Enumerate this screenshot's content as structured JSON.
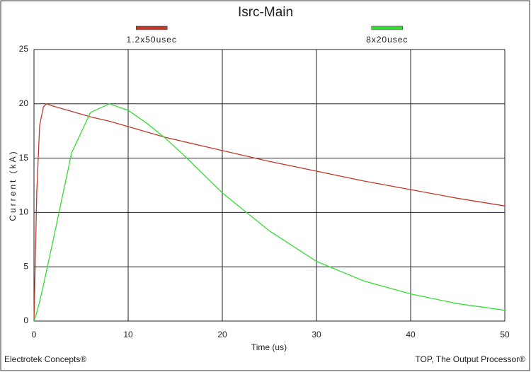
{
  "chart_data": {
    "type": "line",
    "title": "Isrc-Main",
    "xlabel": "Time (us)",
    "ylabel": "Current (kA)",
    "footer_left": "Electrotek Concepts®",
    "footer_right": "TOP, The Output Processor®",
    "x": [
      0,
      0.3,
      0.6,
      1,
      1.3,
      2,
      4,
      6,
      8,
      10,
      12,
      14,
      16,
      20,
      25,
      30,
      35,
      40,
      45,
      50
    ],
    "series": [
      {
        "name": "1.2x50usec",
        "color": "#c0392b",
        "values": [
          0,
          12,
          18,
          19.7,
          20,
          19.8,
          19.3,
          18.8,
          18.4,
          17.9,
          17.4,
          16.9,
          16.5,
          15.7,
          14.7,
          13.8,
          12.9,
          12.1,
          11.3,
          10.6
        ]
      },
      {
        "name": "8x20usec",
        "color": "#33dd33",
        "values": [
          0,
          0.8,
          1.8,
          3.3,
          4.5,
          7.3,
          15.5,
          19.2,
          20,
          19.4,
          18.2,
          16.8,
          15.2,
          11.8,
          8.3,
          5.5,
          3.7,
          2.5,
          1.6,
          1.0
        ]
      }
    ],
    "xlim": [
      0,
      50
    ],
    "xticks": [
      0,
      10,
      20,
      30,
      40,
      50
    ],
    "ylim": [
      0,
      25
    ],
    "yticks": [
      0,
      5,
      10,
      15,
      20,
      25
    ],
    "grid": true
  }
}
